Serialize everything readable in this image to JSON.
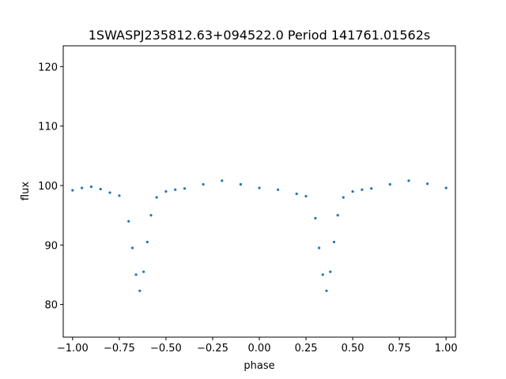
{
  "chart_data": {
    "type": "scatter",
    "title": "1SWASPJ235812.63+094522.0 Period 141761.01562s",
    "xlabel": "phase",
    "ylabel": "flux",
    "xlim": [
      -1.05,
      1.05
    ],
    "ylim": [
      74.5,
      123.5
    ],
    "xticks": [
      -1.0,
      -0.75,
      -0.5,
      -0.25,
      0.0,
      0.25,
      0.5,
      0.75,
      1.0
    ],
    "xtick_labels": [
      "−1.00",
      "−0.75",
      "−0.50",
      "−0.25",
      "0.00",
      "0.25",
      "0.50",
      "0.75",
      "1.00"
    ],
    "yticks": [
      80,
      90,
      100,
      110,
      120
    ],
    "ytick_labels": [
      "80",
      "90",
      "100",
      "110",
      "120"
    ],
    "grid": false,
    "marker_color": "#1f77b4",
    "series": [
      {
        "points": [
          [
            -1.0,
            99.2
          ],
          [
            -0.95,
            99.6
          ],
          [
            -0.9,
            99.8
          ],
          [
            -0.85,
            99.4
          ],
          [
            -0.8,
            98.8
          ],
          [
            -0.75,
            98.3
          ],
          [
            -0.7,
            94.0
          ],
          [
            -0.68,
            89.5
          ],
          [
            -0.66,
            85.0
          ],
          [
            -0.64,
            82.3
          ],
          [
            -0.62,
            85.5
          ],
          [
            -0.6,
            90.5
          ],
          [
            -0.58,
            95.0
          ],
          [
            -0.55,
            98.0
          ],
          [
            -0.5,
            99.0
          ],
          [
            -0.45,
            99.3
          ],
          [
            -0.4,
            99.5
          ],
          [
            -0.3,
            100.2
          ],
          [
            -0.2,
            100.8
          ],
          [
            -0.1,
            100.2
          ],
          [
            0.0,
            99.6
          ],
          [
            0.1,
            99.3
          ],
          [
            0.2,
            98.6
          ],
          [
            0.25,
            98.2
          ],
          [
            0.3,
            94.5
          ],
          [
            0.32,
            89.5
          ],
          [
            0.34,
            85.0
          ],
          [
            0.36,
            82.3
          ],
          [
            0.38,
            85.5
          ],
          [
            0.4,
            90.5
          ],
          [
            0.42,
            95.0
          ],
          [
            0.45,
            98.0
          ],
          [
            0.5,
            99.0
          ],
          [
            0.55,
            99.3
          ],
          [
            0.6,
            99.5
          ],
          [
            0.7,
            100.2
          ],
          [
            0.8,
            100.8
          ],
          [
            0.9,
            100.3
          ],
          [
            1.0,
            99.6
          ]
        ]
      }
    ]
  }
}
